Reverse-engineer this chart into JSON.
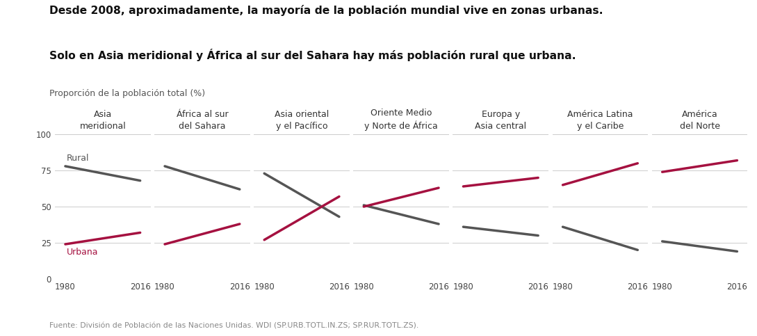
{
  "title_line1": "Desde 2008, aproximadamente, la mayoría de la población mundial vive en zonas urbanas.",
  "title_line2": "Solo en Asia meridional y África al sur del Sahara hay más población rural que urbana.",
  "subtitle": "Proporción de la población total (%)",
  "footnote": "Fuente: División de Población de las Naciones Unidas. WDI (SP.URB.TOTL.IN.ZS; SP.RUR.TOTL.ZS).",
  "rural_label": "Rural",
  "urban_label": "Urbana",
  "rural_color": "#555555",
  "urban_color": "#a51140",
  "background_color": "#ffffff",
  "regions": [
    {
      "name": "Asia\nmeridional",
      "rural": [
        78,
        68
      ],
      "urban": [
        24,
        32
      ]
    },
    {
      "name": "África al sur\ndel Sahara",
      "rural": [
        78,
        62
      ],
      "urban": [
        24,
        38
      ]
    },
    {
      "name": "Asia oriental\ny el Pacífico",
      "rural": [
        73,
        43
      ],
      "urban": [
        27,
        57
      ]
    },
    {
      "name": "Oriente Medio\ny Norte de África",
      "rural": [
        51,
        38
      ],
      "urban": [
        50,
        63
      ]
    },
    {
      "name": "Europa y\nAsia central",
      "rural": [
        36,
        30
      ],
      "urban": [
        64,
        70
      ]
    },
    {
      "name": "América Latina\ny el Caribe",
      "rural": [
        36,
        20
      ],
      "urban": [
        65,
        80
      ]
    },
    {
      "name": "América\ndel Norte",
      "rural": [
        26,
        19
      ],
      "urban": [
        74,
        82
      ]
    }
  ],
  "xlim": [
    1975,
    2021
  ],
  "ylim": [
    0,
    100
  ],
  "yticks": [
    0,
    25,
    50,
    75,
    100
  ],
  "xtick_labels": [
    "1980",
    "2016"
  ],
  "xtick_positions": [
    1980,
    2016
  ]
}
